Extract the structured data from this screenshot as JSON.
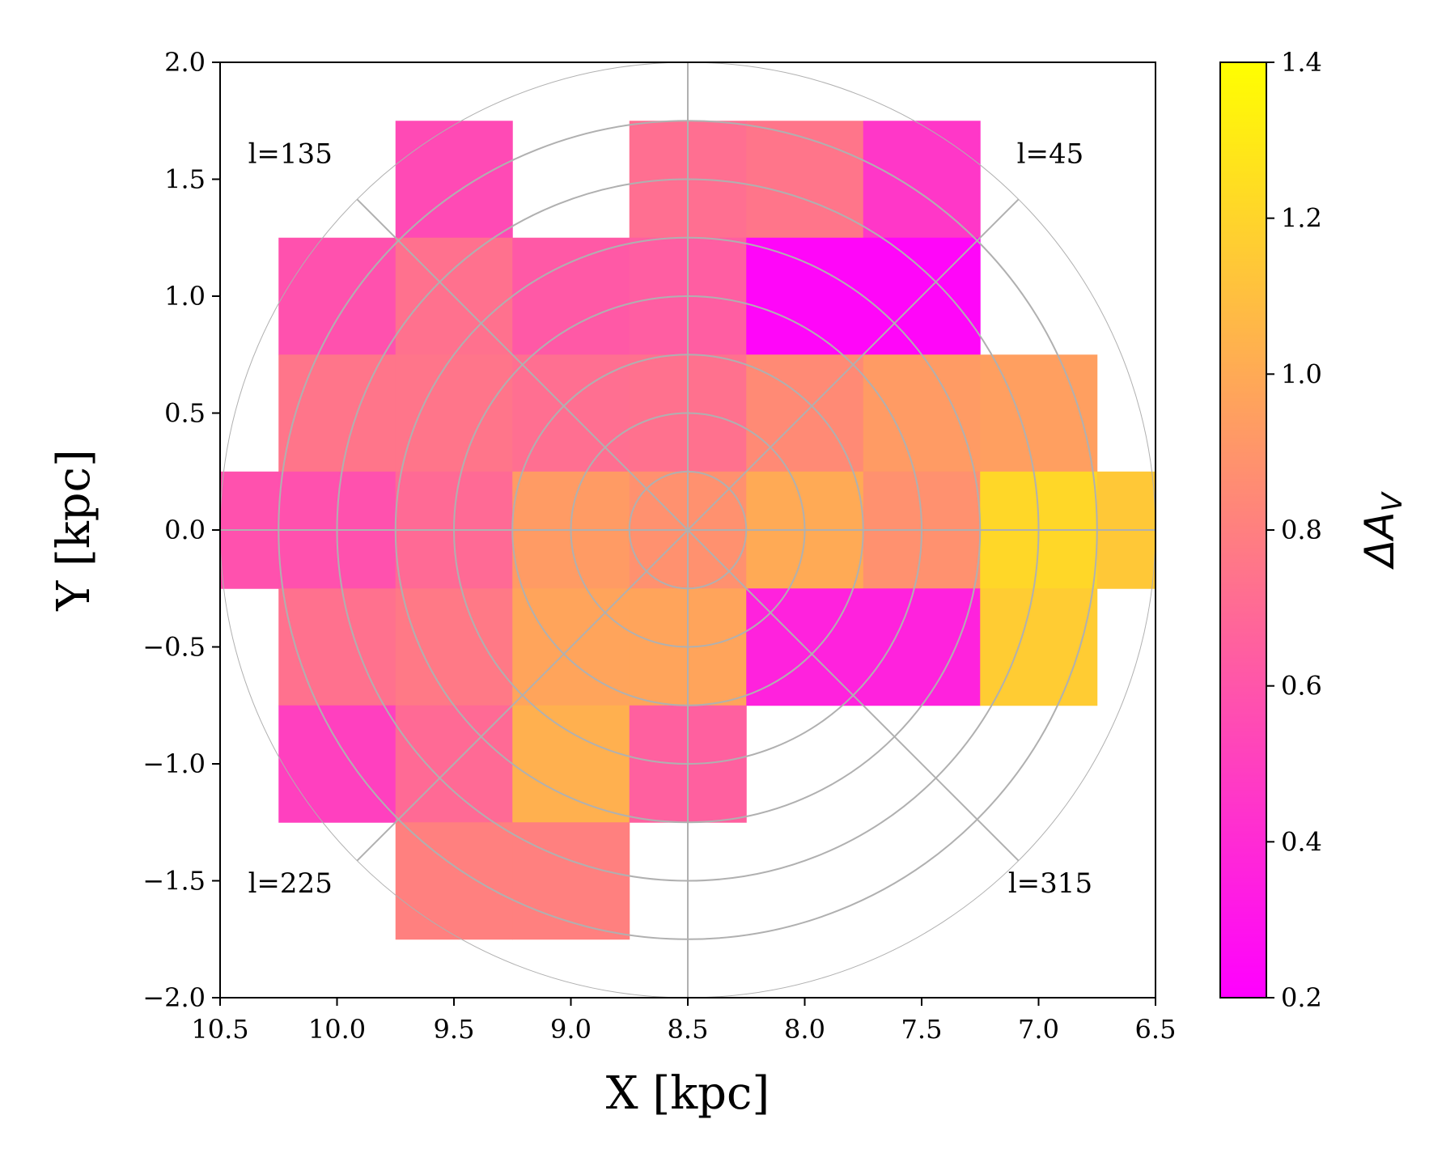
{
  "chart_data": {
    "type": "heatmap",
    "title": "",
    "xlabel": "X [kpc]",
    "ylabel": "Y [kpc]",
    "colorbar_label_main": "ΔA",
    "colorbar_label_sub": "V",
    "xlim": [
      10.5,
      6.5
    ],
    "ylim": [
      -2.0,
      2.0
    ],
    "x_ticks": [
      "10.5",
      "10.0",
      "9.5",
      "9.0",
      "8.5",
      "8.0",
      "7.5",
      "7.0",
      "6.5"
    ],
    "x_tick_values": [
      10.5,
      10.0,
      9.5,
      9.0,
      8.5,
      8.0,
      7.5,
      7.0,
      6.5
    ],
    "y_ticks": [
      "2.0",
      "1.5",
      "1.0",
      "0.5",
      "0.0",
      "−0.5",
      "−1.0",
      "−1.5",
      "−2.0"
    ],
    "y_tick_values": [
      2.0,
      1.5,
      1.0,
      0.5,
      0.0,
      -0.5,
      -1.0,
      -1.5,
      -2.0
    ],
    "colorbar": {
      "range": [
        0.2,
        1.4
      ],
      "ticks": [
        "0.2",
        "0.4",
        "0.6",
        "0.8",
        "1.0",
        "1.2",
        "1.4"
      ],
      "tick_values": [
        0.2,
        0.4,
        0.6,
        0.8,
        1.0,
        1.2,
        1.4
      ],
      "colormap": "spring",
      "color_low": "#ff00ff",
      "color_high": "#ffff00"
    },
    "bin_size": 0.5,
    "cells": [
      {
        "x": 9.5,
        "y": 1.5,
        "value": 0.55
      },
      {
        "x": 8.5,
        "y": 1.5,
        "value": 0.72
      },
      {
        "x": 8.0,
        "y": 1.5,
        "value": 0.75
      },
      {
        "x": 7.5,
        "y": 1.5,
        "value": 0.46
      },
      {
        "x": 10.0,
        "y": 1.0,
        "value": 0.58
      },
      {
        "x": 9.5,
        "y": 1.0,
        "value": 0.73
      },
      {
        "x": 9.0,
        "y": 1.0,
        "value": 0.62
      },
      {
        "x": 8.5,
        "y": 1.0,
        "value": 0.64
      },
      {
        "x": 8.0,
        "y": 1.0,
        "value": 0.23
      },
      {
        "x": 7.5,
        "y": 1.0,
        "value": 0.23
      },
      {
        "x": 10.0,
        "y": 0.5,
        "value": 0.75
      },
      {
        "x": 9.5,
        "y": 0.5,
        "value": 0.75
      },
      {
        "x": 9.0,
        "y": 0.5,
        "value": 0.72
      },
      {
        "x": 8.5,
        "y": 0.5,
        "value": 0.73
      },
      {
        "x": 8.0,
        "y": 0.5,
        "value": 0.85
      },
      {
        "x": 7.5,
        "y": 0.5,
        "value": 0.93
      },
      {
        "x": 7.0,
        "y": 0.5,
        "value": 0.95
      },
      {
        "x": 10.5,
        "y": 0.0,
        "value": 0.58
      },
      {
        "x": 10.0,
        "y": 0.0,
        "value": 0.58
      },
      {
        "x": 9.5,
        "y": 0.0,
        "value": 0.7
      },
      {
        "x": 9.0,
        "y": 0.0,
        "value": 0.93
      },
      {
        "x": 8.5,
        "y": 0.0,
        "value": 0.88
      },
      {
        "x": 8.0,
        "y": 0.0,
        "value": 1.0
      },
      {
        "x": 7.5,
        "y": 0.0,
        "value": 0.88
      },
      {
        "x": 7.0,
        "y": 0.0,
        "value": 1.21
      },
      {
        "x": 6.5,
        "y": 0.0,
        "value": 1.14
      },
      {
        "x": 10.0,
        "y": -0.5,
        "value": 0.73
      },
      {
        "x": 9.5,
        "y": -0.5,
        "value": 0.77
      },
      {
        "x": 9.0,
        "y": -0.5,
        "value": 0.97
      },
      {
        "x": 8.5,
        "y": -0.5,
        "value": 0.97
      },
      {
        "x": 8.0,
        "y": -0.5,
        "value": 0.36
      },
      {
        "x": 7.5,
        "y": -0.5,
        "value": 0.36
      },
      {
        "x": 7.0,
        "y": -0.5,
        "value": 1.16
      },
      {
        "x": 10.0,
        "y": -1.0,
        "value": 0.5
      },
      {
        "x": 9.5,
        "y": -1.0,
        "value": 0.7
      },
      {
        "x": 9.0,
        "y": -1.0,
        "value": 1.03
      },
      {
        "x": 8.5,
        "y": -1.0,
        "value": 0.65
      },
      {
        "x": 9.5,
        "y": -1.5,
        "value": 0.8
      },
      {
        "x": 9.0,
        "y": -1.5,
        "value": 0.8
      }
    ],
    "polar_grid": {
      "center": [
        8.5,
        0.0
      ],
      "ring_radii_kpc": [
        0.25,
        0.5,
        0.75,
        1.0,
        1.25,
        1.5,
        1.75,
        2.0
      ],
      "spoke_angles_deg": [
        0,
        45,
        90,
        135,
        180,
        225,
        270,
        315
      ]
    },
    "annotations": [
      {
        "text": "l=135",
        "x": 10.2,
        "y": 1.57
      },
      {
        "text": "l=45",
        "x": 6.95,
        "y": 1.57
      },
      {
        "text": "l=225",
        "x": 10.2,
        "y": -1.55
      },
      {
        "text": "l=315",
        "x": 6.95,
        "y": -1.55
      }
    ]
  }
}
